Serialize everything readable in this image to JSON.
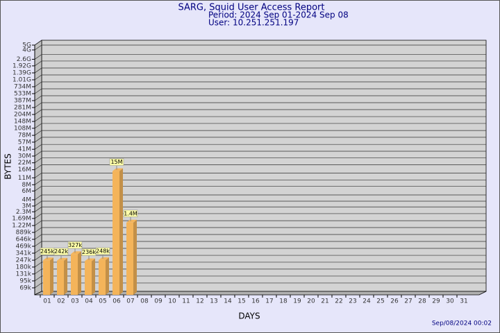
{
  "chart_data": {
    "type": "bar",
    "title": "SARG, Squid User Access Report",
    "subtitle": [
      "Period: 2024 Sep 01-2024 Sep 08",
      "User: 10.251.251.197"
    ],
    "y_label": "BYTES",
    "x_label": "DAYS",
    "footer": "Sep/08/2024 00:02",
    "categories": [
      "01",
      "02",
      "03",
      "04",
      "05",
      "06",
      "07",
      "08",
      "09",
      "10",
      "11",
      "12",
      "13",
      "14",
      "15",
      "16",
      "17",
      "18",
      "19",
      "20",
      "21",
      "22",
      "23",
      "24",
      "25",
      "26",
      "27",
      "28",
      "29",
      "30",
      "31"
    ],
    "values": [
      245000,
      242000,
      327000,
      236000,
      248000,
      15000000,
      1400000,
      null,
      null,
      null,
      null,
      null,
      null,
      null,
      null,
      null,
      null,
      null,
      null,
      null,
      null,
      null,
      null,
      null,
      null,
      null,
      null,
      null,
      null,
      null,
      null
    ],
    "value_labels": [
      "245k",
      "242k",
      "327k",
      "236k",
      "248k",
      "15M",
      "1.4M",
      null,
      null,
      null,
      null,
      null,
      null,
      null,
      null,
      null,
      null,
      null,
      null,
      null,
      null,
      null,
      null,
      null,
      null,
      null,
      null,
      null,
      null,
      null,
      null
    ],
    "color": "#f4b45a",
    "log_scale": true,
    "grid": true,
    "ylim": [
      50000,
      5000000000
    ],
    "yticks": [
      {
        "value": 69000,
        "label": "69k"
      },
      {
        "value": 95000,
        "label": "95k"
      },
      {
        "value": 131000,
        "label": "131k"
      },
      {
        "value": 180000,
        "label": "180k"
      },
      {
        "value": 247000,
        "label": "247k"
      },
      {
        "value": 341000,
        "label": "341k"
      },
      {
        "value": 469000,
        "label": "469k"
      },
      {
        "value": 646000,
        "label": "646k"
      },
      {
        "value": 889000,
        "label": "889k"
      },
      {
        "value": 1220000,
        "label": "1.22M"
      },
      {
        "value": 1690000,
        "label": "1.69M"
      },
      {
        "value": 2300000,
        "label": "2.3M"
      },
      {
        "value": 3000000,
        "label": "3M"
      },
      {
        "value": 4000000,
        "label": "4M"
      },
      {
        "value": 6000000,
        "label": "6M"
      },
      {
        "value": 8000000,
        "label": "8M"
      },
      {
        "value": 11000000,
        "label": "11M"
      },
      {
        "value": 16000000,
        "label": "16M"
      },
      {
        "value": 22000000,
        "label": "22M"
      },
      {
        "value": 30000000,
        "label": "30M"
      },
      {
        "value": 41000000,
        "label": "41M"
      },
      {
        "value": 57000000,
        "label": "57M"
      },
      {
        "value": 78000000,
        "label": "78M"
      },
      {
        "value": 108000000,
        "label": "108M"
      },
      {
        "value": 148000000,
        "label": "148M"
      },
      {
        "value": 204000000,
        "label": "204M"
      },
      {
        "value": 281000000,
        "label": "281M"
      },
      {
        "value": 387000000,
        "label": "387M"
      },
      {
        "value": 533000000,
        "label": "533M"
      },
      {
        "value": 734000000,
        "label": "734M"
      },
      {
        "value": 1010000000,
        "label": "1.01G"
      },
      {
        "value": 1390000000,
        "label": "1.39G"
      },
      {
        "value": 1920000000,
        "label": "1.92G"
      },
      {
        "value": 2600000000,
        "label": "2.6G"
      },
      {
        "value": 4000000000,
        "label": "4G"
      },
      {
        "value": 5000000000,
        "label": "5G"
      }
    ]
  }
}
